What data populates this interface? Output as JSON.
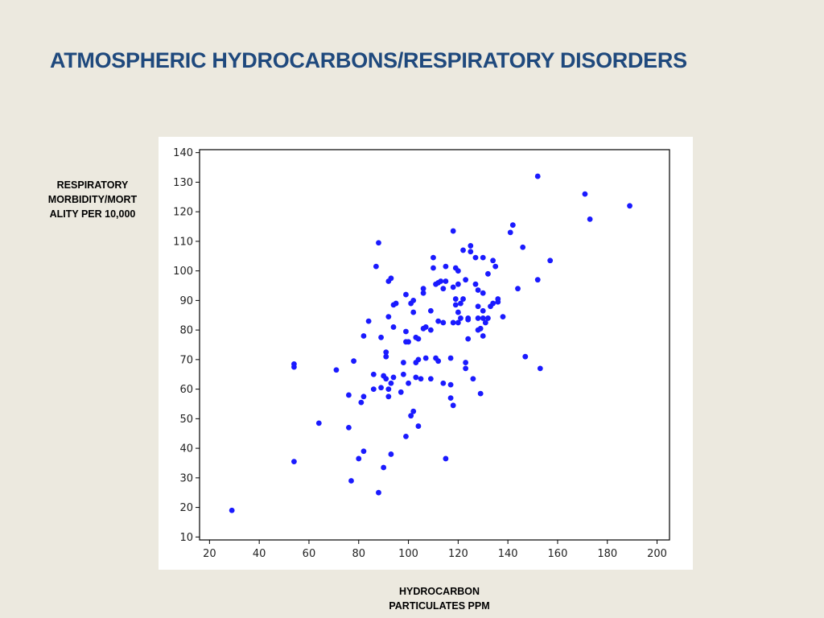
{
  "slide": {
    "title": "ATMOSPHERIC HYDROCARBONS/RESPIRATORY DISORDERS",
    "ylabel_lines": [
      "RESPIRATORY",
      "MORBIDITY/MORT",
      "ALITY PER 10,000"
    ],
    "xlabel_lines": [
      "HYDROCARBON",
      "PARTICULATES PPM"
    ]
  },
  "chart_data": {
    "type": "scatter",
    "title": "",
    "xlabel": "HYDROCARBON PARTICULATES PPM",
    "ylabel": "RESPIRATORY MORBIDITY/MORTALITY PER 10,000",
    "xlim": [
      16,
      205
    ],
    "ylim": [
      9,
      141
    ],
    "xticks": [
      20,
      40,
      60,
      80,
      100,
      120,
      140,
      160,
      180,
      200
    ],
    "yticks": [
      10,
      20,
      30,
      40,
      50,
      60,
      70,
      80,
      90,
      100,
      110,
      120,
      130,
      140
    ],
    "grid": false,
    "point_color": "#1a1aff",
    "series": [
      {
        "points": [
          [
            29,
            19
          ],
          [
            54,
            35.5
          ],
          [
            54,
            68.5
          ],
          [
            54,
            67.5
          ],
          [
            64,
            48.5
          ],
          [
            71,
            66.5
          ],
          [
            76,
            58
          ],
          [
            76,
            47
          ],
          [
            77,
            29
          ],
          [
            78,
            69.5
          ],
          [
            80,
            36.5
          ],
          [
            81,
            55.5
          ],
          [
            82,
            39
          ],
          [
            82,
            57.5
          ],
          [
            82,
            78
          ],
          [
            84,
            83
          ],
          [
            86,
            60
          ],
          [
            86,
            65
          ],
          [
            87,
            101.5
          ],
          [
            88,
            25
          ],
          [
            88,
            109.5
          ],
          [
            89,
            60.5
          ],
          [
            89,
            77.5
          ],
          [
            90,
            33.5
          ],
          [
            90,
            64.5
          ],
          [
            91,
            72.5
          ],
          [
            91,
            71
          ],
          [
            91,
            63.5
          ],
          [
            92,
            57.5
          ],
          [
            92,
            60
          ],
          [
            92,
            96.5
          ],
          [
            92,
            84.5
          ],
          [
            93,
            97.5
          ],
          [
            93,
            38
          ],
          [
            93,
            62
          ],
          [
            94,
            64
          ],
          [
            94,
            81
          ],
          [
            94,
            88.5
          ],
          [
            95,
            89
          ],
          [
            97,
            59
          ],
          [
            98,
            65
          ],
          [
            98,
            69
          ],
          [
            99,
            92
          ],
          [
            99,
            79.5
          ],
          [
            99,
            44
          ],
          [
            99,
            76
          ],
          [
            100,
            76
          ],
          [
            100,
            62
          ],
          [
            101,
            51
          ],
          [
            101,
            89
          ],
          [
            102,
            90
          ],
          [
            102,
            52.5
          ],
          [
            102,
            86
          ],
          [
            103,
            77.5
          ],
          [
            103,
            64
          ],
          [
            103,
            69
          ],
          [
            104,
            70
          ],
          [
            104,
            47.5
          ],
          [
            104,
            77
          ],
          [
            105,
            63.5
          ],
          [
            106,
            94
          ],
          [
            106,
            92.5
          ],
          [
            106,
            80.5
          ],
          [
            107,
            81
          ],
          [
            107,
            70.5
          ],
          [
            109,
            63.5
          ],
          [
            109,
            86.5
          ],
          [
            109,
            80
          ],
          [
            110,
            104.5
          ],
          [
            110,
            101
          ],
          [
            111,
            95.5
          ],
          [
            111,
            70.5
          ],
          [
            112,
            96
          ],
          [
            112,
            83
          ],
          [
            112,
            69.5
          ],
          [
            113,
            96.5
          ],
          [
            114,
            94
          ],
          [
            114,
            82.5
          ],
          [
            114,
            62
          ],
          [
            115,
            101.5
          ],
          [
            115,
            96.5
          ],
          [
            115,
            36.5
          ],
          [
            117,
            61.5
          ],
          [
            117,
            70.5
          ],
          [
            117,
            57
          ],
          [
            118,
            113.5
          ],
          [
            118,
            94.5
          ],
          [
            118,
            54.5
          ],
          [
            118,
            82.5
          ],
          [
            119,
            101
          ],
          [
            119,
            90.5
          ],
          [
            119,
            88.5
          ],
          [
            120,
            100
          ],
          [
            120,
            95.5
          ],
          [
            120,
            86
          ],
          [
            120,
            82.5
          ],
          [
            121,
            84
          ],
          [
            121,
            89
          ],
          [
            122,
            90.5
          ],
          [
            122,
            107
          ],
          [
            123,
            97
          ],
          [
            123,
            67
          ],
          [
            123,
            69
          ],
          [
            124,
            84
          ],
          [
            124,
            77
          ],
          [
            124,
            83.5
          ],
          [
            125,
            106.5
          ],
          [
            125,
            108.5
          ],
          [
            126,
            63.5
          ],
          [
            127,
            104.5
          ],
          [
            127,
            95.5
          ],
          [
            128,
            80
          ],
          [
            128,
            93.5
          ],
          [
            128,
            88
          ],
          [
            128,
            84
          ],
          [
            129,
            58.5
          ],
          [
            129,
            80.5
          ],
          [
            130,
            92.5
          ],
          [
            130,
            104.5
          ],
          [
            130,
            86.5
          ],
          [
            130,
            84
          ],
          [
            130,
            78
          ],
          [
            131,
            82.5
          ],
          [
            132,
            99
          ],
          [
            132,
            84
          ],
          [
            133,
            88
          ],
          [
            134,
            103.5
          ],
          [
            134,
            89
          ],
          [
            135,
            101.5
          ],
          [
            136,
            90.5
          ],
          [
            136,
            89.5
          ],
          [
            138,
            84.5
          ],
          [
            141,
            113
          ],
          [
            142,
            115.5
          ],
          [
            144,
            94
          ],
          [
            146,
            108
          ],
          [
            147,
            71
          ],
          [
            152,
            132
          ],
          [
            152,
            97
          ],
          [
            153,
            67
          ],
          [
            157,
            103.5
          ],
          [
            171,
            126
          ],
          [
            173,
            117.5
          ],
          [
            189,
            122
          ]
        ]
      }
    ]
  }
}
